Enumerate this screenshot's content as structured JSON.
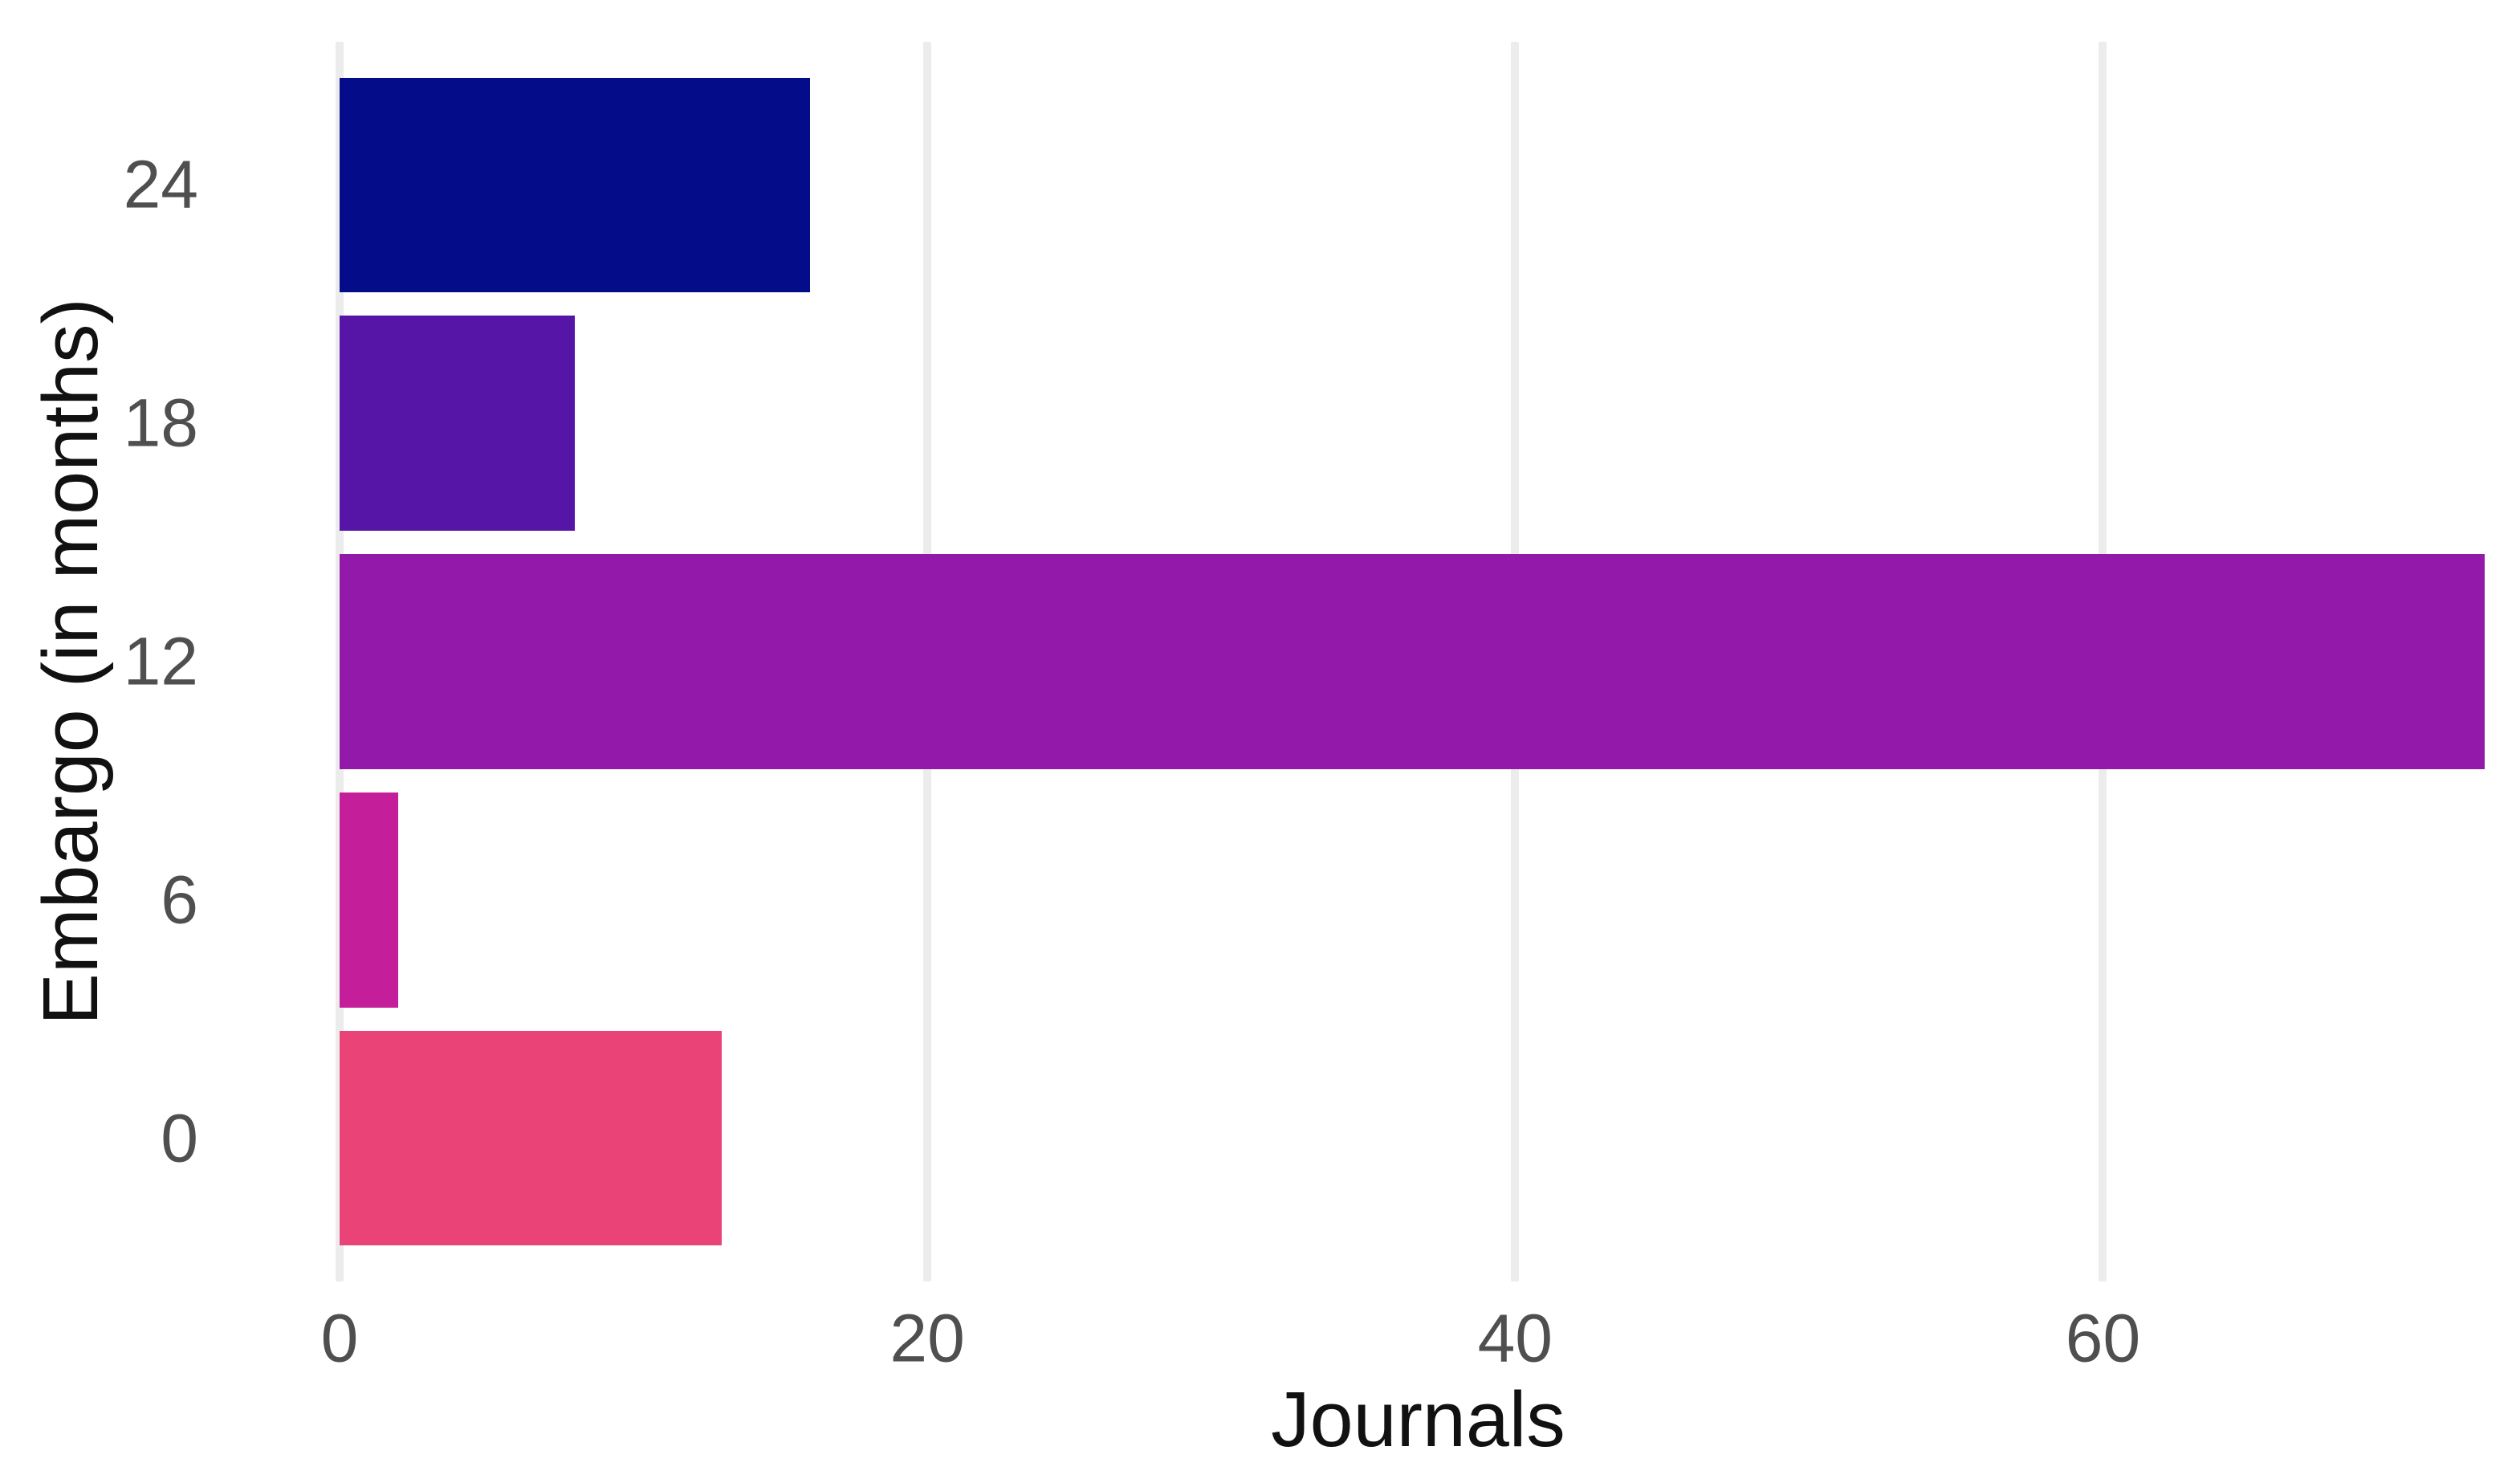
{
  "chart_data": {
    "type": "bar",
    "orientation": "horizontal",
    "title": "",
    "xlabel": "Journals",
    "ylabel": "Embargo (in months)",
    "categories": [
      "24",
      "18",
      "12",
      "6",
      "0"
    ],
    "values": [
      16,
      8,
      73,
      2,
      13
    ],
    "series": [
      {
        "name": "Journals",
        "values": [
          16,
          8,
          73,
          2,
          13
        ]
      }
    ],
    "bar_colors": [
      "#050c8a",
      "#5615a7",
      "#9219a9",
      "#c51e9b",
      "#ea4378"
    ],
    "x_ticks": [
      0,
      20,
      40,
      60
    ],
    "xlim": [
      0,
      73.4
    ],
    "grid": "vertical-major-only",
    "gridline_color": "#ececec",
    "legend_position": "none",
    "background_color": "#ffffff",
    "tick_label_color": "#4f4f4f",
    "axis_title_color": "#111111"
  }
}
